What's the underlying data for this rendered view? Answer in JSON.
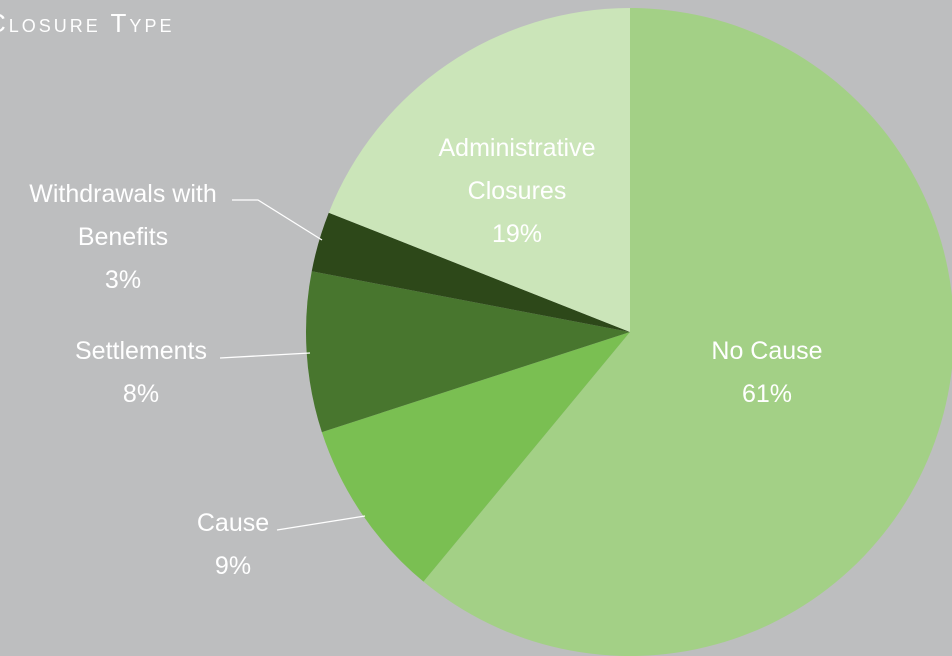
{
  "chart_data": {
    "type": "pie",
    "title": "Closure Type",
    "start_angle_deg": 0,
    "direction": "clockwise",
    "slices": [
      {
        "label_lines": [
          "No Cause"
        ],
        "value": 61,
        "value_label": "61%",
        "color": "#a3d086",
        "label_color": "#ffffff",
        "label_placement": "inside"
      },
      {
        "label_lines": [
          "Cause"
        ],
        "value": 9,
        "value_label": "9%",
        "color": "#7abf52",
        "label_color": "#ffffff",
        "label_placement": "outside"
      },
      {
        "label_lines": [
          "Settlements"
        ],
        "value": 8,
        "value_label": "8%",
        "color": "#48762e",
        "label_color": "#ffffff",
        "label_placement": "outside"
      },
      {
        "label_lines": [
          "Withdrawals with",
          "Benefits"
        ],
        "value": 3,
        "value_label": "3%",
        "color": "#2d4819",
        "label_color": "#ffffff",
        "label_placement": "outside"
      },
      {
        "label_lines": [
          "Administrative",
          "Closures"
        ],
        "value": 19,
        "value_label": "19%",
        "color": "#cbe5b9",
        "label_color": "#ffffff",
        "label_placement": "inside"
      }
    ],
    "background": "#bdbebf",
    "leader_line_color": "#ffffff"
  }
}
